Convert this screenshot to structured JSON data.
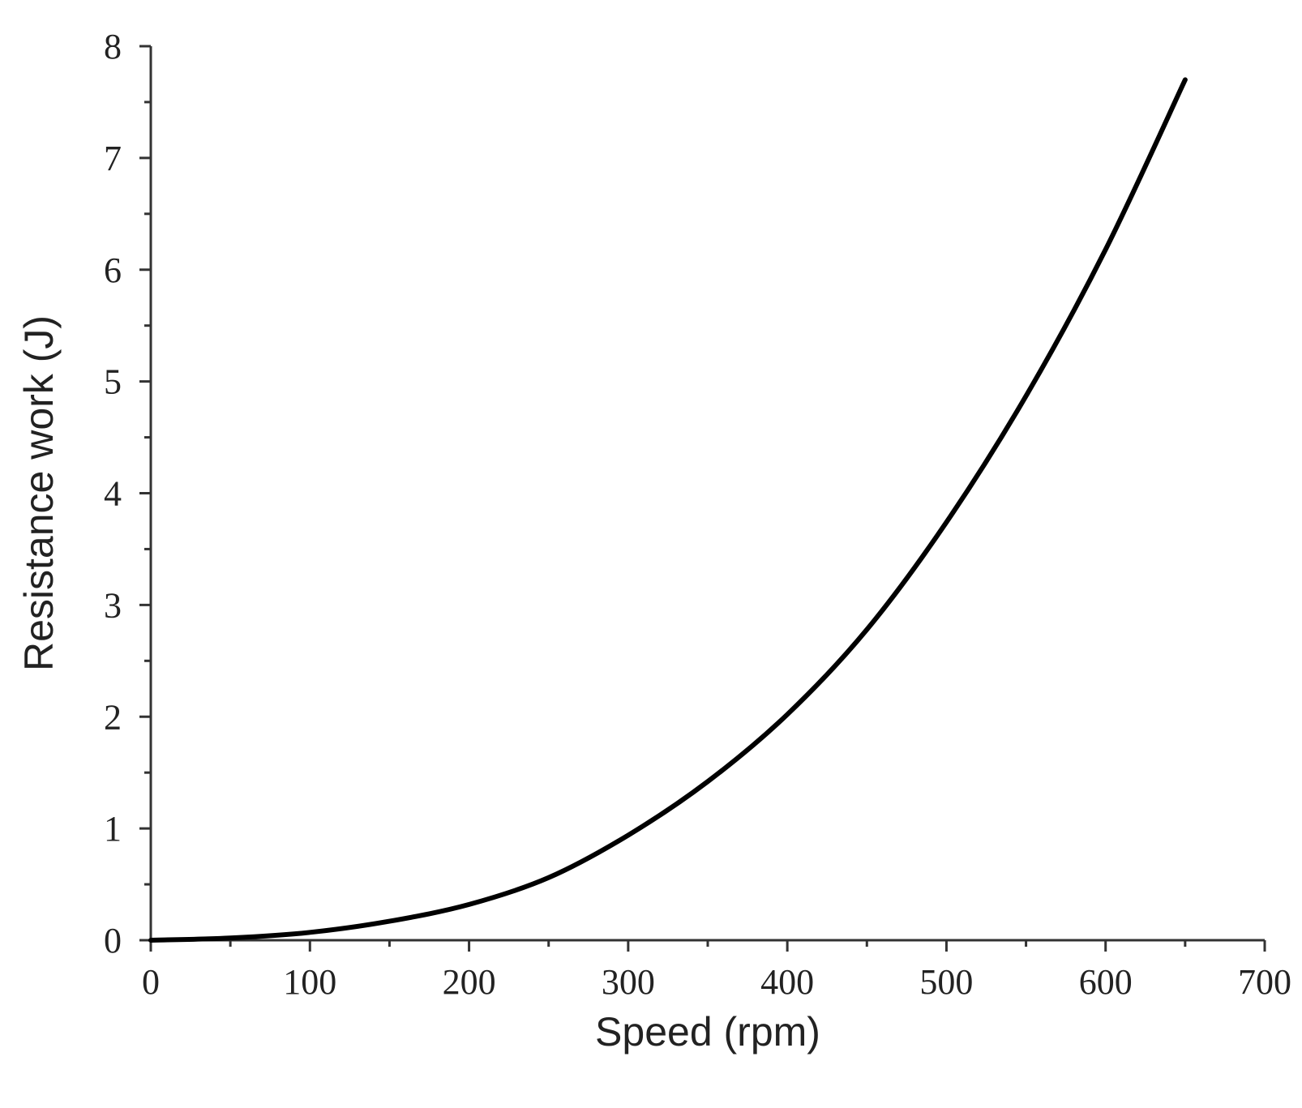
{
  "chart_data": {
    "type": "line",
    "title": "",
    "xlabel": "Speed (rpm)",
    "ylabel": "Resistance work (J)",
    "xlim": [
      0,
      700
    ],
    "ylim": [
      0,
      8
    ],
    "x_ticks": [
      0,
      100,
      200,
      300,
      400,
      500,
      600,
      700
    ],
    "x_tick_labels": [
      "0",
      "100",
      "200",
      "300",
      "400",
      "500",
      "600",
      "700"
    ],
    "y_ticks": [
      0,
      1,
      2,
      3,
      4,
      5,
      6,
      7,
      8
    ],
    "y_tick_labels": [
      "0",
      "1",
      "2",
      "3",
      "4",
      "5",
      "6",
      "7",
      "8"
    ],
    "grid": false,
    "legend": "none",
    "series": [
      {
        "color": "#000000",
        "x": [
          0,
          50,
          100,
          150,
          200,
          250,
          300,
          350,
          400,
          450,
          500,
          550,
          600,
          650
        ],
        "y": [
          0.0,
          0.02,
          0.07,
          0.17,
          0.32,
          0.56,
          0.94,
          1.42,
          2.02,
          2.78,
          3.74,
          4.87,
          6.18,
          7.7
        ]
      }
    ]
  }
}
